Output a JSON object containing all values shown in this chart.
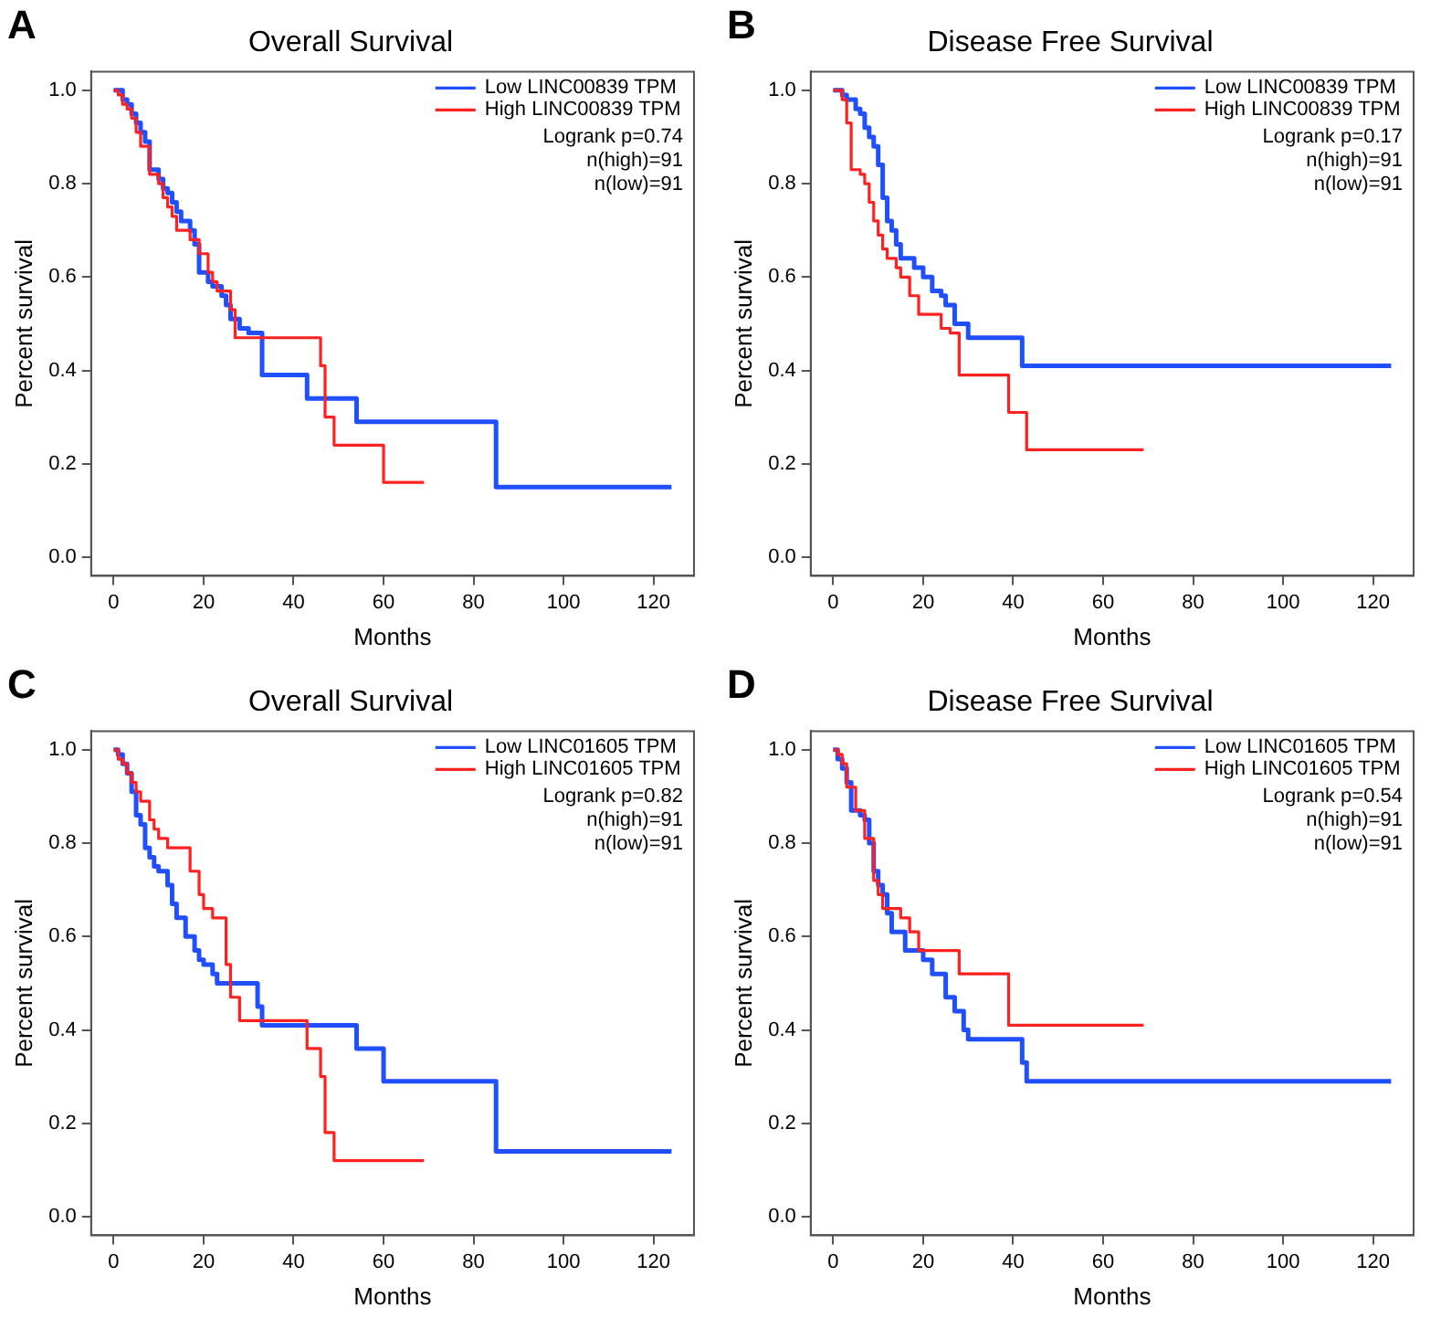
{
  "chart_data": [
    {
      "type": "step",
      "title": "Overall Survival",
      "xlabel": "Months",
      "ylabel": "Percent survival",
      "annotations": [
        "A",
        "Logrank p=0.74",
        "n(high)=91",
        "n(low)=91"
      ],
      "legend": "top right",
      "grid": false,
      "xlim": [
        -5,
        129
      ],
      "ylim": [
        -0.04,
        1.04
      ],
      "xticks": [
        0,
        20,
        40,
        60,
        80,
        100,
        120
      ],
      "yticks": [
        {
          "value": 0,
          "label": "0.0"
        },
        {
          "value": 0.2,
          "label": "0.2"
        },
        {
          "value": 0.4,
          "label": "0.4"
        },
        {
          "value": 0.6,
          "label": "0.6"
        },
        {
          "value": 0.8,
          "label": "0.8"
        },
        {
          "value": 1,
          "label": "1.0"
        }
      ],
      "series": [
        {
          "name": "Low LINC00839 TPM",
          "color": "#1f4fff",
          "x": [
            0,
            2,
            3,
            4,
            5,
            6,
            7,
            8,
            10,
            11,
            12,
            13,
            14,
            15,
            17,
            18,
            19,
            21,
            22,
            24,
            25,
            26,
            28,
            30,
            33,
            43,
            54,
            85,
            124
          ],
          "values": [
            1,
            0.98,
            0.97,
            0.95,
            0.93,
            0.91,
            0.89,
            0.83,
            0.81,
            0.79,
            0.78,
            0.76,
            0.74,
            0.72,
            0.7,
            0.67,
            0.61,
            0.59,
            0.58,
            0.56,
            0.54,
            0.51,
            0.49,
            0.48,
            0.39,
            0.34,
            0.29,
            0.15,
            0.15
          ]
        },
        {
          "name": "High LINC00839 TPM",
          "color": "#ff2020",
          "x": [
            0,
            1,
            2,
            3,
            4,
            5,
            6,
            8,
            10,
            11,
            12,
            13,
            14,
            17,
            19,
            21,
            22,
            23,
            26,
            27,
            46,
            47,
            49,
            60,
            69
          ],
          "values": [
            1,
            0.99,
            0.97,
            0.96,
            0.94,
            0.91,
            0.88,
            0.82,
            0.8,
            0.77,
            0.75,
            0.73,
            0.7,
            0.68,
            0.65,
            0.61,
            0.59,
            0.57,
            0.53,
            0.47,
            0.41,
            0.3,
            0.24,
            0.16,
            0.16
          ]
        }
      ]
    },
    {
      "type": "step",
      "title": "Disease Free Survival",
      "xlabel": "Months",
      "ylabel": "Percent survival",
      "annotations": [
        "B",
        "Logrank p=0.17",
        "n(high)=91",
        "n(low)=91"
      ],
      "legend": "top right",
      "grid": false,
      "xlim": [
        -5,
        129
      ],
      "ylim": [
        -0.04,
        1.04
      ],
      "xticks": [
        0,
        20,
        40,
        60,
        80,
        100,
        120
      ],
      "yticks": [
        {
          "value": 0,
          "label": "0.0"
        },
        {
          "value": 0.2,
          "label": "0.2"
        },
        {
          "value": 0.4,
          "label": "0.4"
        },
        {
          "value": 0.6,
          "label": "0.6"
        },
        {
          "value": 0.8,
          "label": "0.8"
        },
        {
          "value": 1,
          "label": "1.0"
        }
      ],
      "series": [
        {
          "name": "Low LINC00839 TPM",
          "color": "#1f4fff",
          "x": [
            0,
            2,
            3,
            5,
            6,
            7,
            8,
            9,
            10,
            11,
            12,
            13,
            14,
            15,
            18,
            20,
            22,
            24,
            25,
            27,
            30,
            42,
            124
          ],
          "values": [
            1,
            0.99,
            0.98,
            0.96,
            0.95,
            0.92,
            0.9,
            0.88,
            0.84,
            0.77,
            0.72,
            0.7,
            0.67,
            0.64,
            0.62,
            0.6,
            0.57,
            0.56,
            0.54,
            0.5,
            0.47,
            0.41,
            0.41
          ]
        },
        {
          "name": "High LINC00839 TPM",
          "color": "#ff2020",
          "x": [
            0,
            2,
            3,
            4,
            6,
            7,
            8,
            9,
            10,
            11,
            12,
            14,
            15,
            17,
            19,
            24,
            26,
            28,
            39,
            43,
            69
          ],
          "values": [
            1,
            0.98,
            0.93,
            0.83,
            0.82,
            0.8,
            0.76,
            0.72,
            0.69,
            0.66,
            0.64,
            0.62,
            0.6,
            0.56,
            0.52,
            0.49,
            0.48,
            0.39,
            0.31,
            0.23,
            0.23
          ]
        }
      ]
    },
    {
      "type": "step",
      "title": "Overall Survival",
      "xlabel": "Months",
      "ylabel": "Percent survival",
      "annotations": [
        "C",
        "Logrank p=0.82",
        "n(high)=91",
        "n(low)=91"
      ],
      "legend": "top right",
      "grid": false,
      "xlim": [
        -5,
        129
      ],
      "ylim": [
        -0.04,
        1.04
      ],
      "xticks": [
        0,
        20,
        40,
        60,
        80,
        100,
        120
      ],
      "yticks": [
        {
          "value": 0,
          "label": "0.0"
        },
        {
          "value": 0.2,
          "label": "0.2"
        },
        {
          "value": 0.4,
          "label": "0.4"
        },
        {
          "value": 0.6,
          "label": "0.6"
        },
        {
          "value": 0.8,
          "label": "0.8"
        },
        {
          "value": 1,
          "label": "1.0"
        }
      ],
      "series": [
        {
          "name": "Low LINC01605 TPM",
          "color": "#1f4fff",
          "x": [
            0,
            1,
            2,
            3,
            4,
            5,
            6,
            7,
            8,
            9,
            10,
            12,
            13,
            14,
            16,
            18,
            19,
            20,
            22,
            23,
            32,
            33,
            54,
            60,
            85,
            124
          ],
          "values": [
            1,
            0.99,
            0.97,
            0.95,
            0.91,
            0.86,
            0.84,
            0.79,
            0.77,
            0.75,
            0.74,
            0.71,
            0.67,
            0.64,
            0.6,
            0.57,
            0.55,
            0.54,
            0.52,
            0.5,
            0.45,
            0.41,
            0.36,
            0.29,
            0.14,
            0.14
          ]
        },
        {
          "name": "High LINC01605 TPM",
          "color": "#ff2020",
          "x": [
            0,
            1,
            2,
            3,
            4,
            5,
            6,
            8,
            9,
            10,
            12,
            17,
            19,
            20,
            22,
            25,
            26,
            28,
            43,
            46,
            47,
            49,
            69
          ],
          "values": [
            1,
            0.98,
            0.97,
            0.95,
            0.93,
            0.91,
            0.89,
            0.85,
            0.83,
            0.81,
            0.79,
            0.74,
            0.69,
            0.66,
            0.64,
            0.54,
            0.47,
            0.42,
            0.36,
            0.3,
            0.18,
            0.12,
            0.12
          ]
        }
      ]
    },
    {
      "type": "step",
      "title": "Disease Free Survival",
      "xlabel": "Months",
      "ylabel": "Percent survival",
      "annotations": [
        "D",
        "Logrank p=0.54",
        "n(high)=91",
        "n(low)=91"
      ],
      "legend": "top right",
      "grid": false,
      "xlim": [
        -5,
        129
      ],
      "ylim": [
        -0.04,
        1.04
      ],
      "xticks": [
        0,
        20,
        40,
        60,
        80,
        100,
        120
      ],
      "yticks": [
        {
          "value": 0,
          "label": "0.0"
        },
        {
          "value": 0.2,
          "label": "0.2"
        },
        {
          "value": 0.4,
          "label": "0.4"
        },
        {
          "value": 0.6,
          "label": "0.6"
        },
        {
          "value": 0.8,
          "label": "0.8"
        },
        {
          "value": 1,
          "label": "1.0"
        }
      ],
      "series": [
        {
          "name": "Low LINC01605 TPM",
          "color": "#1f4fff",
          "x": [
            0,
            1,
            2,
            3,
            4,
            6,
            7,
            8,
            9,
            10,
            11,
            12,
            13,
            16,
            20,
            22,
            25,
            27,
            29,
            30,
            42,
            43,
            124
          ],
          "values": [
            1,
            0.98,
            0.96,
            0.93,
            0.87,
            0.86,
            0.85,
            0.8,
            0.74,
            0.71,
            0.69,
            0.65,
            0.61,
            0.57,
            0.55,
            0.52,
            0.47,
            0.44,
            0.4,
            0.38,
            0.33,
            0.29,
            0.29
          ]
        },
        {
          "name": "High LINC01605 TPM",
          "color": "#ff2020",
          "x": [
            0,
            1,
            2,
            3,
            5,
            7,
            9,
            10,
            11,
            15,
            17,
            19,
            28,
            39,
            69
          ],
          "values": [
            1,
            0.99,
            0.97,
            0.92,
            0.87,
            0.81,
            0.72,
            0.69,
            0.66,
            0.64,
            0.61,
            0.57,
            0.52,
            0.41,
            0.41
          ]
        }
      ]
    }
  ]
}
